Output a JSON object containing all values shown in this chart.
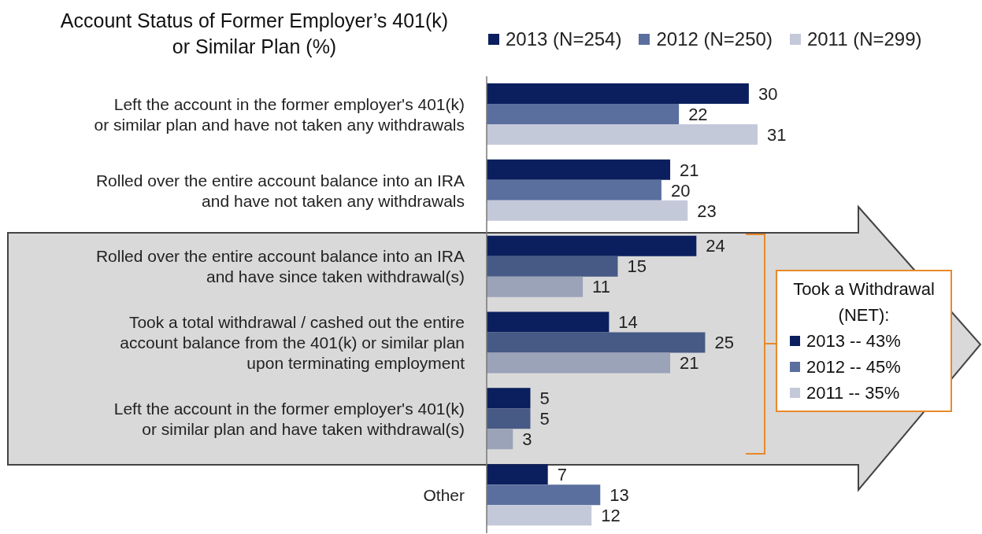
{
  "chart_data": {
    "type": "bar",
    "orientation": "horizontal",
    "title": "Account Status of Former Employer’s 401(k) or Similar Plan (%)",
    "categories": [
      "Left the account in the former employer's 401(k) or similar plan and have not taken any withdrawals",
      "Rolled over the entire account balance into an IRA and have not taken any withdrawals",
      "Rolled over the entire account balance into an IRA and have since taken withdrawal(s)",
      "Took a total withdrawal / cashed out the entire account balance from the 401(k) or similar plan upon terminating employment",
      "Left the account in the former employer's 401(k) or similar plan and have taken withdrawal(s)",
      "Other"
    ],
    "series": [
      {
        "name": "2013 (N=254)",
        "color": "#0b1f5e",
        "values": [
          30,
          21,
          24,
          14,
          5,
          7
        ]
      },
      {
        "name": "2012 (N=250)",
        "color": "#5b6f9e",
        "colors": [
          "#5b6f9e",
          "#5b6f9e",
          "#475985",
          "#475985",
          "#475985",
          "#5b6f9e"
        ],
        "values": [
          22,
          20,
          15,
          25,
          5,
          13
        ]
      },
      {
        "name": "2011 (N=299)",
        "color": "#c4c9da",
        "colors": [
          "#c4c9da",
          "#c4c9da",
          "#9ba3b9",
          "#9ba3b9",
          "#9ba3b9",
          "#c4c9da"
        ],
        "values": [
          31,
          23,
          11,
          21,
          3,
          12
        ]
      }
    ],
    "data_labels": true,
    "legend": "top right",
    "grid": false,
    "annotations": [
      "Took a Withdrawal (NET):",
      "2013 -- 43%",
      "2012 -- 45%",
      "2011 -- 35%"
    ]
  }
}
